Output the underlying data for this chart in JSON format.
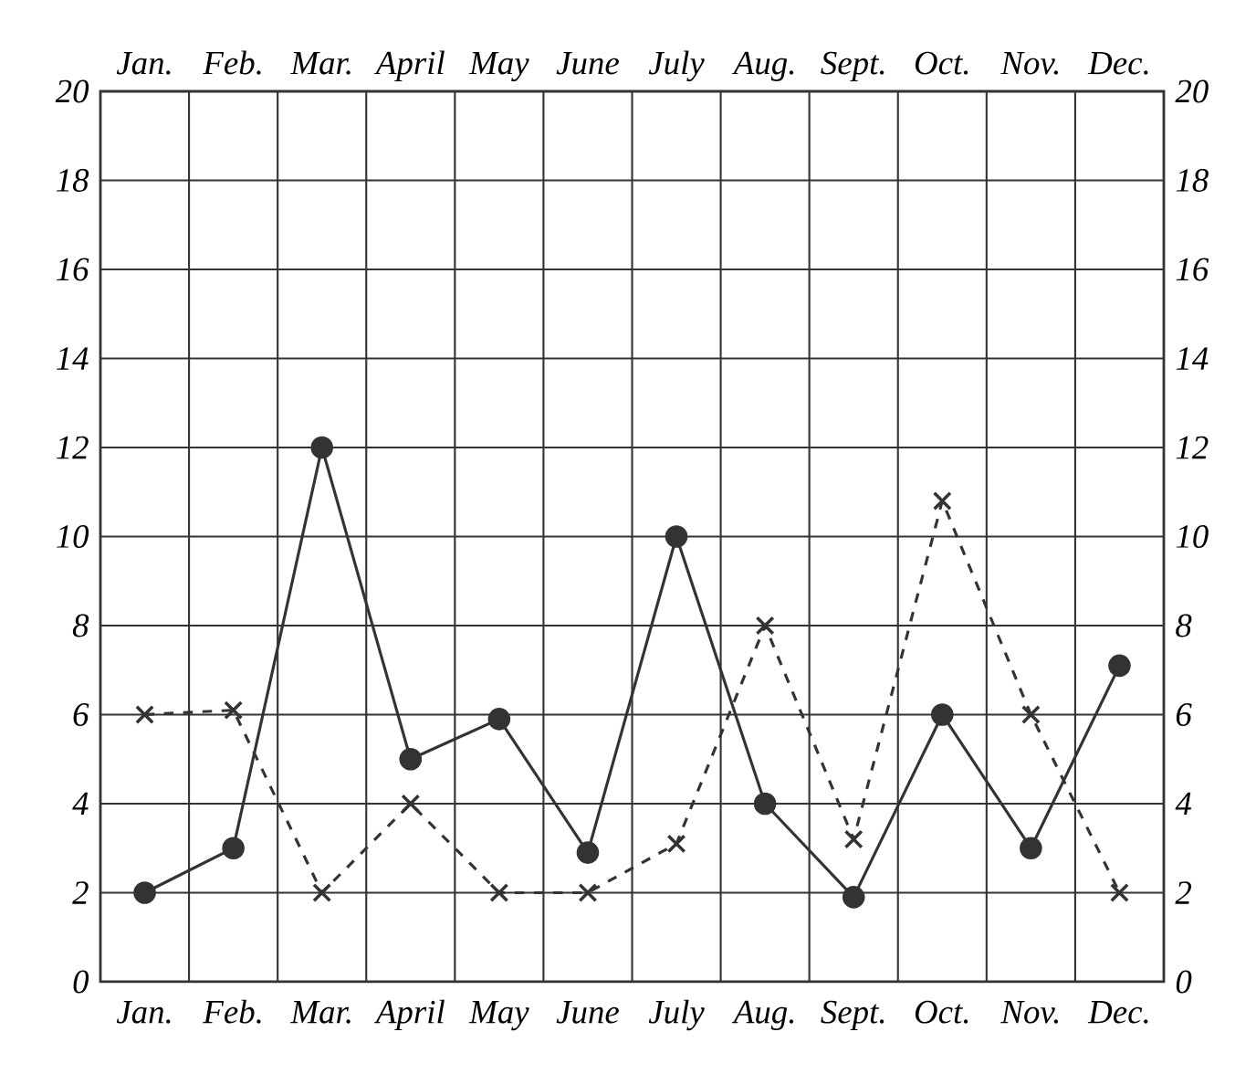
{
  "chart_data": {
    "type": "line",
    "categories": [
      "Jan.",
      "Feb.",
      "Mar.",
      "April",
      "May",
      "June",
      "July",
      "Aug.",
      "Sept.",
      "Oct.",
      "Nov.",
      "Dec."
    ],
    "series": [
      {
        "color": "#333333",
        "marker": "circle",
        "line_style": "solid",
        "values": [
          2,
          3,
          12,
          5,
          5.9,
          2.9,
          10,
          4,
          1.9,
          6,
          3,
          7.1
        ]
      },
      {
        "color": "#333333",
        "marker": "cross",
        "line_style": "dashed",
        "values": [
          6,
          6.1,
          2,
          4,
          2,
          2,
          3.1,
          8,
          3.2,
          10.8,
          6,
          2
        ]
      }
    ],
    "ylim": [
      0,
      20
    ],
    "yticks": [
      0,
      2,
      4,
      6,
      8,
      10,
      12,
      14,
      16,
      18,
      20
    ],
    "y2lim": [
      0,
      20
    ],
    "y2ticks": [
      0,
      2,
      4,
      6,
      8,
      10,
      12,
      14,
      16,
      18,
      20
    ],
    "grid": true
  }
}
